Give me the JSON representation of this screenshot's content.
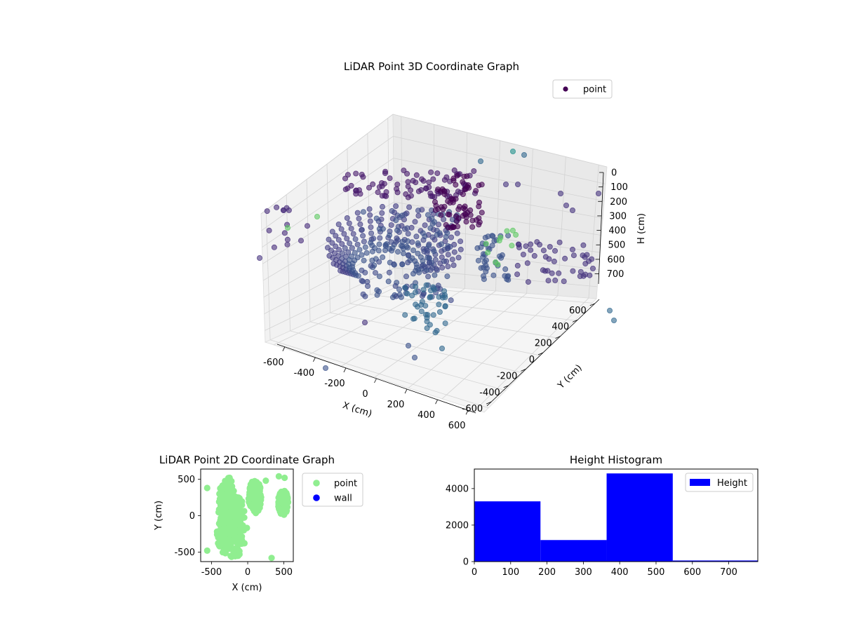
{
  "colors": {
    "point_3d": "#440154",
    "point_2d": "#90ee90",
    "wall": "#0000ff",
    "histogram": "#0000ff"
  },
  "chart_data": [
    {
      "type": "scatter",
      "projection": "3d",
      "title": "LiDAR Point 3D Coordinate Graph",
      "xlabel": "X (cm)",
      "ylabel": "Y (cm)",
      "zlabel": "H (cm)",
      "xlim": [
        -650,
        650
      ],
      "ylim": [
        -650,
        650
      ],
      "zlim": [
        770,
        0
      ],
      "xticks": [
        -600,
        -400,
        -200,
        0,
        200,
        400,
        600
      ],
      "yticks": [
        -600,
        -400,
        -200,
        0,
        200,
        400,
        600
      ],
      "zticks": [
        0,
        100,
        200,
        300,
        400,
        500,
        600,
        700
      ],
      "zaxis_inverted": true,
      "grid": true,
      "colormap": "viridis",
      "legend": {
        "placement": "upper-right",
        "entries": [
          "point"
        ]
      },
      "series": [
        {
          "name": "point"
        }
      ]
    },
    {
      "type": "scatter",
      "title": "LiDAR Point 2D Coordinate Graph",
      "xlabel": "X (cm)",
      "ylabel": "Y (cm)",
      "xlim": [
        -650,
        630
      ],
      "ylim": [
        -630,
        640
      ],
      "xticks": [
        -500,
        0,
        500
      ],
      "yticks": [
        -500,
        0,
        500
      ],
      "legend": {
        "placement": "outside-right",
        "entries": [
          "point",
          "wall"
        ]
      },
      "series": [
        {
          "name": "point",
          "color": "#90ee90"
        },
        {
          "name": "wall",
          "color": "#0000ff"
        }
      ]
    },
    {
      "type": "bar",
      "title": "Height Histogram",
      "xlabel": "",
      "ylabel": "",
      "bins": [
        [
          0,
          182
        ],
        [
          182,
          364
        ],
        [
          364,
          546
        ],
        [
          546,
          780
        ]
      ],
      "values": [
        3300,
        1180,
        4830,
        60
      ],
      "xlim": [
        0,
        780
      ],
      "ylim": [
        0,
        5070
      ],
      "xticks": [
        0,
        100,
        200,
        300,
        400,
        500,
        600,
        700
      ],
      "yticks": [
        0,
        2000,
        4000
      ],
      "legend": {
        "placement": "upper-right",
        "entries": [
          "Height"
        ]
      },
      "series": [
        {
          "name": "Height",
          "color": "#0000ff"
        }
      ]
    }
  ]
}
